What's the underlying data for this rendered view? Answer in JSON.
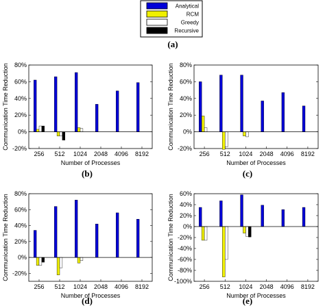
{
  "legend": {
    "entries": [
      {
        "label": "Analytical",
        "color": "#0000d8"
      },
      {
        "label": "RCM",
        "color": "#f0f000"
      },
      {
        "label": "Greedy",
        "color": "#ffffff"
      },
      {
        "label": "Recursive",
        "color": "#000000"
      }
    ]
  },
  "panel_labels": [
    "(a)",
    "(b)",
    "(c)",
    "(d)",
    "(e)"
  ],
  "chart_data": [
    {
      "panel": "(b)",
      "type": "bar",
      "categories": [
        "256",
        "512",
        "1024",
        "2048",
        "4096",
        "8192"
      ],
      "xlabel": "Number of Processes",
      "ylabel": "Communication Time Reduction",
      "ylim": [
        -20,
        80
      ],
      "yticks": [
        "-20%",
        "0%",
        "20%",
        "40%",
        "60%",
        "80%"
      ],
      "yticks_values": [
        -20,
        0,
        20,
        40,
        60,
        80
      ],
      "series": [
        {
          "name": "Analytical",
          "values": [
            62,
            66,
            71,
            33,
            49,
            59
          ]
        },
        {
          "name": "RCM",
          "values": [
            3,
            -5,
            5,
            0,
            0,
            0
          ]
        },
        {
          "name": "Greedy",
          "values": [
            7,
            -5,
            4,
            0,
            0,
            0
          ]
        },
        {
          "name": "Recursive",
          "values": [
            7,
            -10,
            0,
            0,
            0,
            0
          ]
        }
      ]
    },
    {
      "panel": "(c)",
      "type": "bar",
      "categories": [
        "256",
        "512",
        "1024",
        "2048",
        "4096",
        "8192"
      ],
      "xlabel": "Number of Processes",
      "ylabel": "Communication Time Reduction",
      "ylim": [
        -20,
        80
      ],
      "yticks": [
        "-20%",
        "0%",
        "20%",
        "40%",
        "60%",
        "80%"
      ],
      "yticks_values": [
        -20,
        0,
        20,
        40,
        60,
        80
      ],
      "series": [
        {
          "name": "Analytical",
          "values": [
            60,
            68,
            68,
            37,
            47,
            31
          ]
        },
        {
          "name": "RCM",
          "values": [
            19,
            -21,
            -5,
            0,
            0,
            0
          ]
        },
        {
          "name": "Greedy",
          "values": [
            5,
            -18,
            -6,
            0,
            0,
            0
          ]
        },
        {
          "name": "Recursive",
          "values": [
            0,
            0,
            0,
            0,
            0,
            0
          ]
        }
      ]
    },
    {
      "panel": "(d)",
      "type": "bar",
      "categories": [
        "256",
        "512",
        "1024",
        "2048",
        "4096",
        "8192"
      ],
      "xlabel": "Number of Processes",
      "ylabel": "Communication Time Reduction",
      "ylim": [
        -30,
        80
      ],
      "yticks": [
        "-20%",
        "0%",
        "20%",
        "40%",
        "60%",
        "80%"
      ],
      "yticks_values": [
        -20,
        0,
        20,
        40,
        60,
        80
      ],
      "series": [
        {
          "name": "Analytical",
          "values": [
            34,
            64,
            72,
            42,
            56,
            48
          ]
        },
        {
          "name": "RCM",
          "values": [
            -10,
            -22,
            -7,
            0,
            0,
            0
          ]
        },
        {
          "name": "Greedy",
          "values": [
            -10,
            -13,
            -4,
            0,
            0,
            0
          ]
        },
        {
          "name": "Recursive",
          "values": [
            -6,
            0,
            0,
            0,
            0,
            0
          ]
        }
      ]
    },
    {
      "panel": "(e)",
      "type": "bar",
      "categories": [
        "256",
        "512",
        "1024",
        "2048",
        "4096",
        "8192"
      ],
      "xlabel": "Number of Processes",
      "ylabel": "Communication Time Reduction",
      "ylim": [
        -100,
        60
      ],
      "yticks": [
        "-100%",
        "-80%",
        "-60%",
        "-40%",
        "-20%",
        "0%",
        "20%",
        "40%",
        "60%"
      ],
      "yticks_values": [
        -100,
        -80,
        -60,
        -40,
        -20,
        0,
        20,
        40,
        60
      ],
      "series": [
        {
          "name": "Analytical",
          "values": [
            35,
            47,
            58,
            39,
            31,
            35
          ]
        },
        {
          "name": "RCM",
          "values": [
            -25,
            -92,
            -12,
            0,
            0,
            0
          ]
        },
        {
          "name": "Greedy",
          "values": [
            -25,
            -60,
            -18,
            0,
            0,
            0
          ]
        },
        {
          "name": "Recursive",
          "values": [
            0,
            0,
            -19,
            0,
            0,
            0
          ]
        }
      ]
    }
  ]
}
